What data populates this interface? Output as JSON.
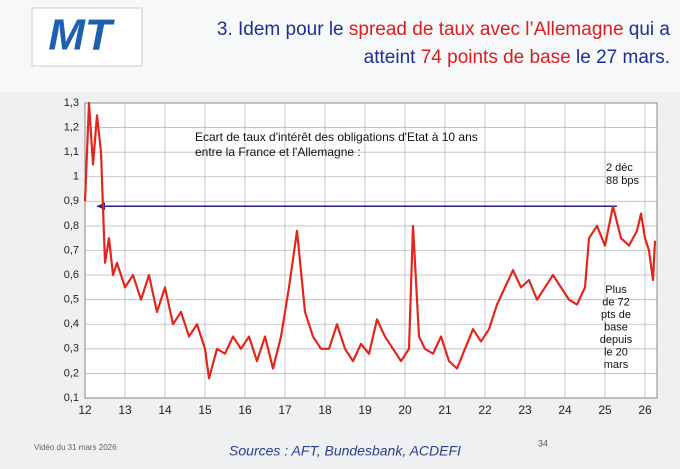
{
  "logo": "MT",
  "title_lines": [
    [
      {
        "text": "3. Idem pour le ",
        "color": "#1f2f8f"
      },
      {
        "text": "spread de taux avec l’Allemagne",
        "color": "#d81e1e"
      },
      {
        "text": " qui a",
        "color": "#1f2f8f"
      }
    ],
    [
      {
        "text": "atteint ",
        "color": "#1f2f8f"
      },
      {
        "text": "74 points de base",
        "color": "#d81e1e"
      },
      {
        "text": " le 27 mars.",
        "color": "#1f2f8f"
      }
    ]
  ],
  "footer": {
    "video": "Vidéo du 31 mars 2026",
    "sources": "Sources : AFT, Bundesbank, ACDEFI",
    "page": "34"
  },
  "chart_data": {
    "type": "line",
    "title_lines": [
      "Ecart de taux d'intérêt des obligations d'Etat à 10 ans",
      "entre la France et l'Allemagne :"
    ],
    "x": [
      12.0,
      12.1,
      12.2,
      12.3,
      12.4,
      12.5,
      12.6,
      12.7,
      12.8,
      13.0,
      13.2,
      13.4,
      13.6,
      13.8,
      14.0,
      14.2,
      14.4,
      14.6,
      14.8,
      15.0,
      15.1,
      15.3,
      15.5,
      15.7,
      15.9,
      16.1,
      16.3,
      16.5,
      16.7,
      16.9,
      17.1,
      17.3,
      17.5,
      17.7,
      17.9,
      18.1,
      18.3,
      18.5,
      18.7,
      18.9,
      19.1,
      19.3,
      19.5,
      19.7,
      19.9,
      20.1,
      20.2,
      20.35,
      20.5,
      20.7,
      20.9,
      21.1,
      21.3,
      21.5,
      21.7,
      21.9,
      22.1,
      22.3,
      22.5,
      22.7,
      22.9,
      23.1,
      23.3,
      23.5,
      23.7,
      23.9,
      24.1,
      24.3,
      24.5,
      24.6,
      24.8,
      25.0,
      25.2,
      25.4,
      25.6,
      25.8,
      25.9,
      26.0,
      26.1,
      26.2,
      26.25
    ],
    "series": [
      {
        "name": "Ecart France-Allemagne",
        "color": "#e3261b",
        "values": [
          0.9,
          1.3,
          1.05,
          1.25,
          1.1,
          0.65,
          0.75,
          0.6,
          0.65,
          0.55,
          0.6,
          0.5,
          0.6,
          0.45,
          0.55,
          0.4,
          0.45,
          0.35,
          0.4,
          0.3,
          0.18,
          0.3,
          0.28,
          0.35,
          0.3,
          0.35,
          0.25,
          0.35,
          0.22,
          0.35,
          0.55,
          0.78,
          0.45,
          0.35,
          0.3,
          0.3,
          0.4,
          0.3,
          0.25,
          0.32,
          0.28,
          0.42,
          0.35,
          0.3,
          0.25,
          0.3,
          0.8,
          0.35,
          0.3,
          0.28,
          0.35,
          0.25,
          0.22,
          0.3,
          0.38,
          0.33,
          0.38,
          0.48,
          0.55,
          0.62,
          0.55,
          0.58,
          0.5,
          0.55,
          0.6,
          0.55,
          0.5,
          0.48,
          0.55,
          0.75,
          0.8,
          0.72,
          0.88,
          0.75,
          0.72,
          0.78,
          0.85,
          0.75,
          0.7,
          0.58,
          0.74
        ]
      }
    ],
    "reference_line": {
      "value": 0.88,
      "color": "#22228a"
    },
    "annotations": [
      [
        "2 déc",
        "88 bps"
      ],
      [
        "Plus",
        "de 72",
        "pts de",
        "base",
        "depuis",
        "le 20",
        "mars"
      ]
    ],
    "xlim": [
      12,
      26.3
    ],
    "xticks": [
      12,
      13,
      14,
      15,
      16,
      17,
      18,
      19,
      20,
      21,
      22,
      23,
      24,
      25,
      26
    ],
    "ylim": [
      0.1,
      1.3
    ],
    "yticks": [
      {
        "value": 0.1,
        "label": "0,1"
      },
      {
        "value": 0.2,
        "label": "0,2"
      },
      {
        "value": 0.3,
        "label": "0,3"
      },
      {
        "value": 0.4,
        "label": "0,4"
      },
      {
        "value": 0.5,
        "label": "0,5"
      },
      {
        "value": 0.6,
        "label": "0,6"
      },
      {
        "value": 0.7,
        "label": "0,7"
      },
      {
        "value": 0.8,
        "label": "0,8"
      },
      {
        "value": 0.9,
        "label": "0,9"
      },
      {
        "value": 1,
        "label": "1"
      },
      {
        "value": 1.1,
        "label": "1,1"
      },
      {
        "value": 1.2,
        "label": "1,2"
      },
      {
        "value": 1.3,
        "label": "1,3"
      }
    ],
    "grid": true
  }
}
